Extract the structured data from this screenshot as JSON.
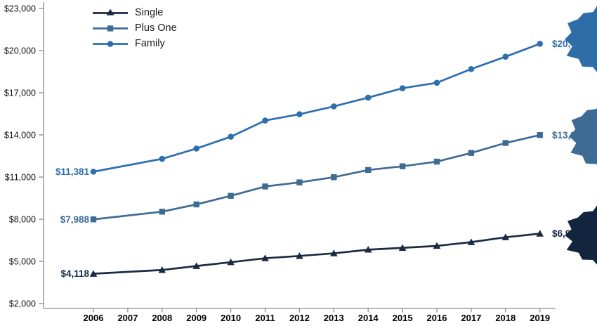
{
  "chart_data": {
    "type": "line",
    "title": "",
    "x": [
      2006,
      2008,
      2009,
      2010,
      2011,
      2012,
      2013,
      2014,
      2015,
      2016,
      2017,
      2018,
      2019
    ],
    "x_tick_labels": [
      "2006",
      "2007",
      "2008",
      "2009",
      "2010",
      "2011",
      "2012",
      "2013",
      "2014",
      "2015",
      "2016",
      "2017",
      "2018",
      "2019"
    ],
    "y_tick_labels": [
      "$2,000",
      "$5,000",
      "$8,000",
      "$11,000",
      "$14,000",
      "$17,000",
      "$20,000",
      "$23,000"
    ],
    "y_tick_values": [
      2000,
      5000,
      8000,
      11000,
      14000,
      17000,
      20000,
      23000
    ],
    "ylim": [
      2000,
      23000
    ],
    "grid": false,
    "legend_position": "top-left",
    "axis_color": "#8a8a8a",
    "tick_label_color": "#111111",
    "series": [
      {
        "name": "Single",
        "marker": "triangle",
        "color": "#1b2a44",
        "label_color": "#182a47",
        "burst_color": "#13243f",
        "start_label": "$4,118",
        "end_label": "$6,972",
        "values": [
          4118,
          4386,
          4669,
          4940,
          5222,
          5384,
          5571,
          5832,
          5963,
          6101,
          6368,
          6715,
          6972
        ]
      },
      {
        "name": "Plus One",
        "marker": "square",
        "color": "#3d6b94",
        "label_color": "#3c6d99",
        "burst_color": "#3d6b94",
        "start_label": "$7,988",
        "end_label": "$13,989",
        "values": [
          7988,
          8535,
          9053,
          9664,
          10329,
          10621,
          10990,
          11503,
          11767,
          12097,
          12716,
          13425,
          13989
        ]
      },
      {
        "name": "Family",
        "marker": "circle",
        "color": "#2d6fad",
        "label_color": "#2a6cab",
        "burst_color": "#2f6da7",
        "start_label": "$11,381",
        "end_label": "$20,486",
        "values": [
          11381,
          12298,
          13027,
          13871,
          15022,
          15473,
          16029,
          16655,
          17322,
          17710,
          18687,
          19565,
          20486
        ]
      }
    ]
  }
}
